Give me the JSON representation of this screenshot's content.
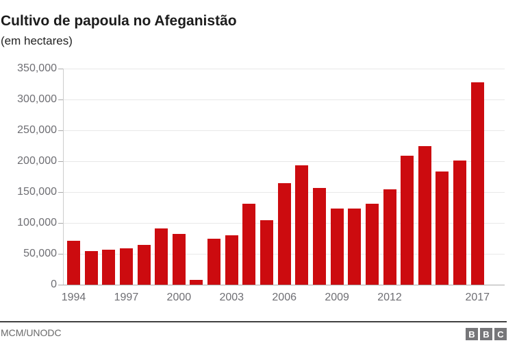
{
  "header": {
    "title": "Cultivo de papoula no Afeganistão",
    "subtitle": "(em hectares)"
  },
  "chart_data": {
    "type": "bar",
    "title": "Cultivo de papoula no Afeganistão",
    "ylabel": "(em hectares)",
    "xlabel": "",
    "x": [
      1994,
      1995,
      1996,
      1997,
      1998,
      1999,
      2000,
      2001,
      2002,
      2003,
      2004,
      2005,
      2006,
      2007,
      2008,
      2009,
      2010,
      2011,
      2012,
      2013,
      2014,
      2015,
      2016,
      2017
    ],
    "values": [
      71500,
      54000,
      57000,
      58500,
      64000,
      91000,
      82000,
      8000,
      74000,
      80000,
      131000,
      104000,
      165000,
      193000,
      157000,
      123000,
      123000,
      131000,
      154000,
      209000,
      224000,
      183000,
      201000,
      328000
    ],
    "ylim": [
      0,
      350000
    ],
    "ytick_step": 50000,
    "ytick_labels": [
      "0",
      "50,000",
      "100,000",
      "150,000",
      "200,000",
      "250,000",
      "300,000",
      "350,000"
    ],
    "xtick_years": [
      1994,
      1997,
      2000,
      2003,
      2006,
      2009,
      2012,
      2017
    ],
    "grid": true,
    "legend": false,
    "bar_color": "#cc0b0f"
  },
  "colors": {
    "bar": "#cc0b0f",
    "title_text": "#1c1c1c",
    "axis_text": "#6e6e73",
    "gridline": "#e8e8e8",
    "axis_line": "#aaaaaa",
    "footer_rule": "#404040",
    "bbc_gray": "#767679"
  },
  "footer": {
    "source": "MCM/UNODC",
    "logo_letters": [
      "B",
      "B",
      "C"
    ]
  }
}
